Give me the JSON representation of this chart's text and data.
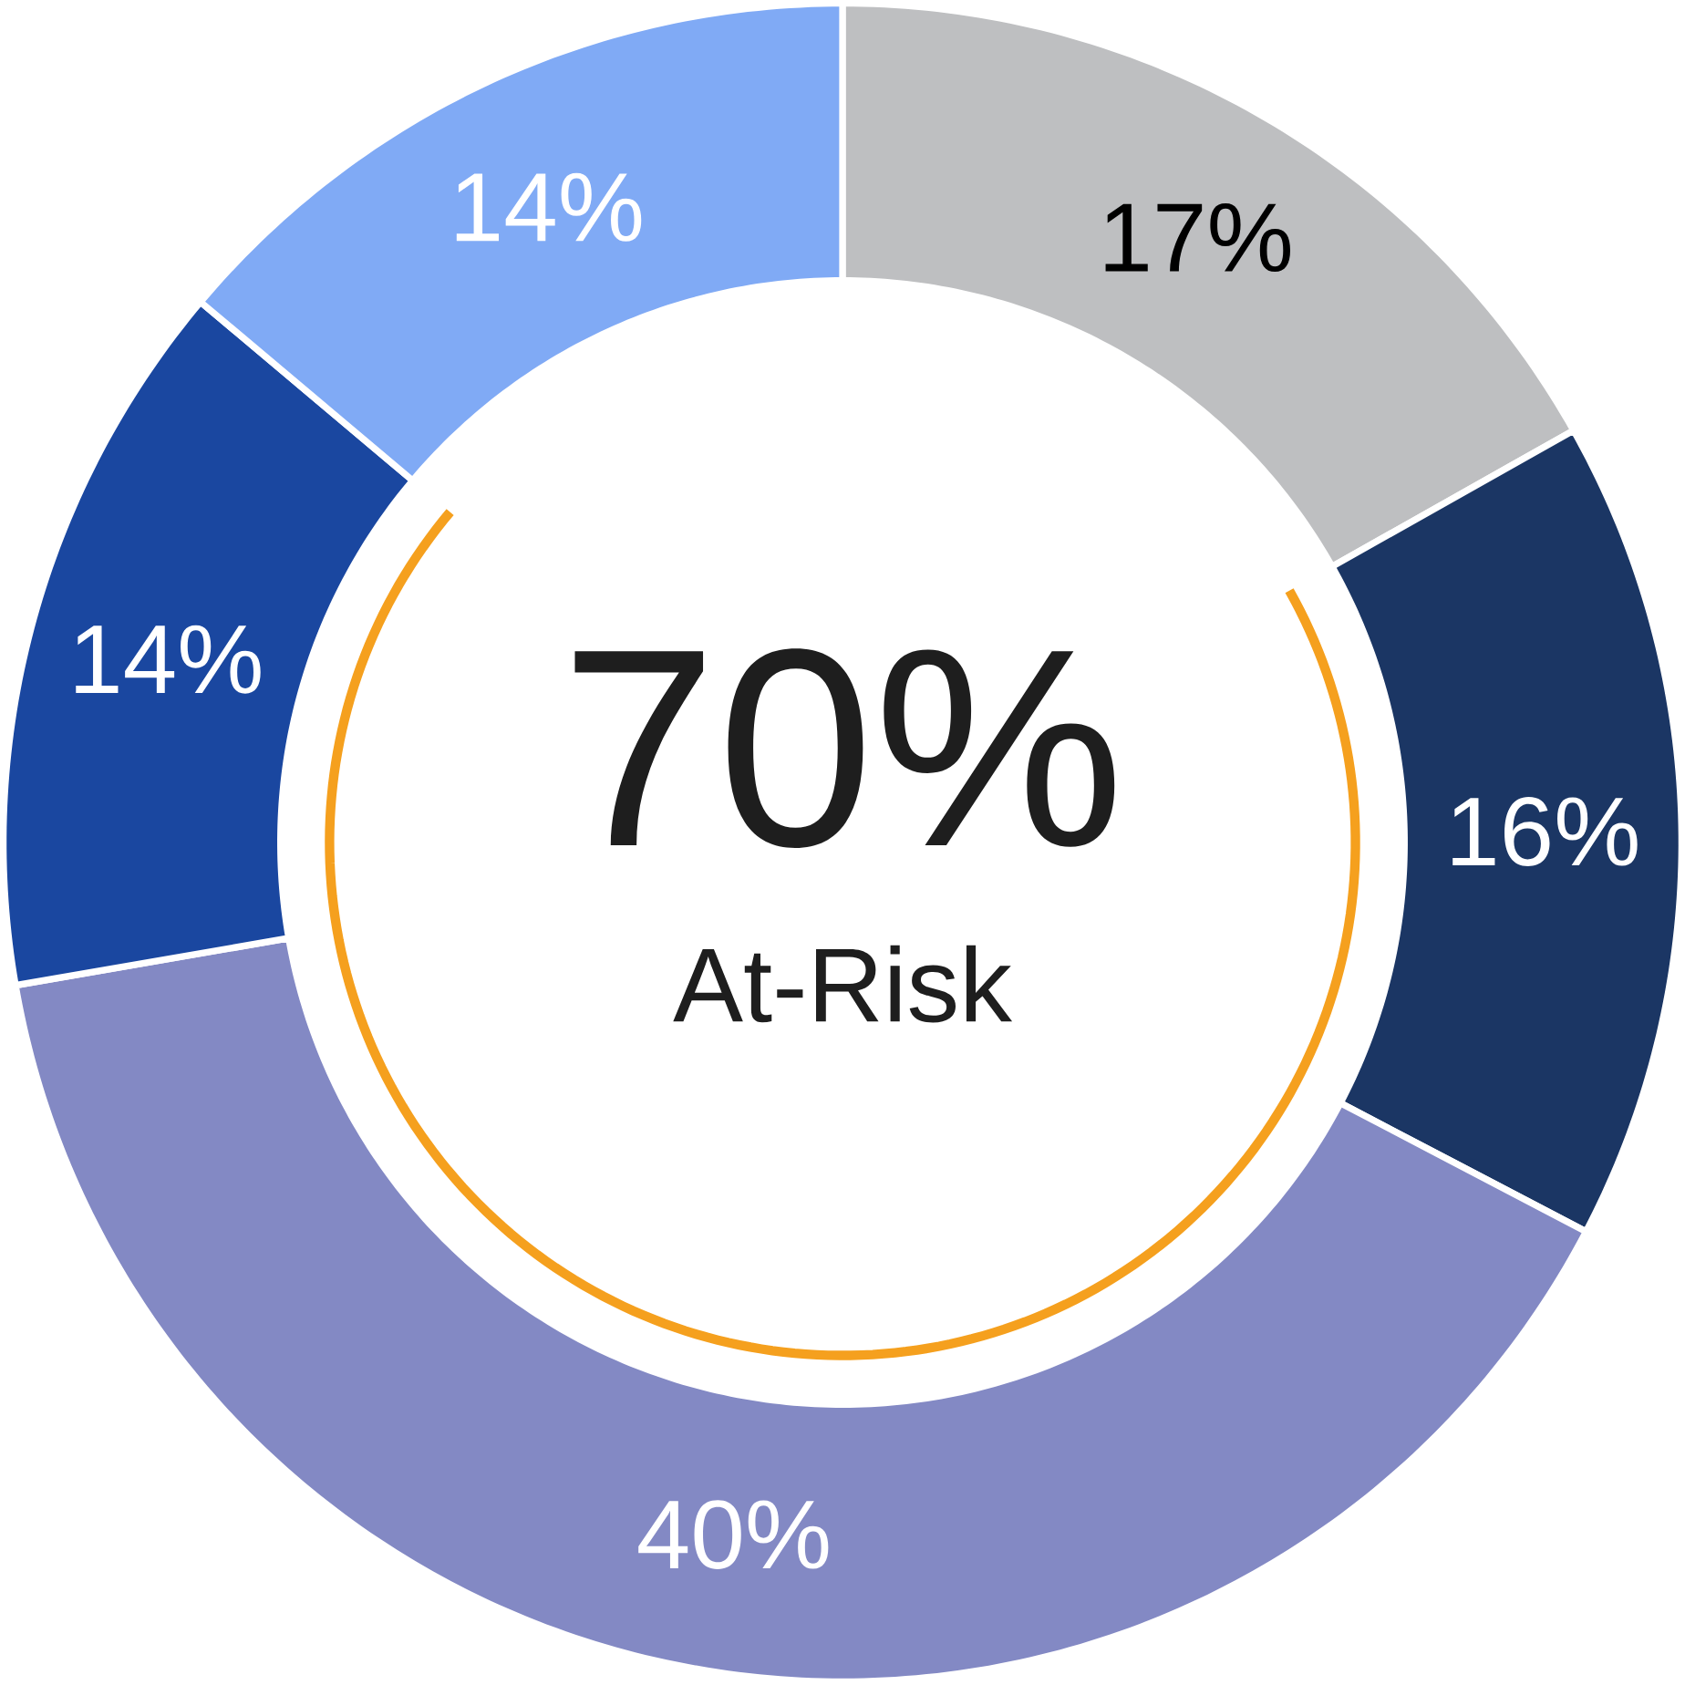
{
  "chart_data": {
    "type": "donut",
    "categories": [
      null,
      null,
      null,
      null,
      null
    ],
    "values": [
      17,
      16,
      40,
      14,
      14
    ],
    "colors": [
      "#bebfc1",
      "#1b3664",
      "#8389c4",
      "#1a47a0",
      "#80aaf5"
    ],
    "value_labels": [
      "17%",
      "16%",
      "40%",
      "14%",
      "14%"
    ],
    "annotations": [
      "70%",
      "At-Risk"
    ]
  }
}
